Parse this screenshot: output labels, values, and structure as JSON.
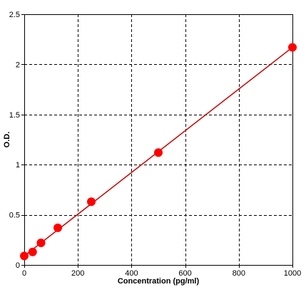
{
  "chart_data": {
    "type": "scatter",
    "title": "",
    "xlabel": "Concentration (pg/ml)",
    "ylabel": "O.D.",
    "xlim": [
      0,
      1000
    ],
    "ylim": [
      0,
      2.5
    ],
    "x_ticks": [
      0,
      200,
      400,
      600,
      800,
      1000
    ],
    "y_ticks": [
      0,
      0.5,
      1,
      1.5,
      2,
      2.5
    ],
    "x_tick_labels": [
      "0",
      "200",
      "400",
      "600",
      "800",
      "1000"
    ],
    "y_tick_labels": [
      "0",
      "0.5",
      "1",
      "1.5",
      "2",
      "2.5"
    ],
    "grid": true,
    "grid_style": "dashed",
    "series": [
      {
        "x": [
          0,
          31.25,
          62.5,
          125,
          250,
          500,
          1000
        ],
        "y": [
          0.09,
          0.13,
          0.22,
          0.37,
          0.63,
          1.12,
          2.17
        ],
        "marker_color": "#ff0000",
        "fit_line": {
          "x": [
            0,
            1000
          ],
          "y": [
            0.09,
            2.17
          ]
        },
        "line_color": "#cc0000"
      }
    ]
  }
}
